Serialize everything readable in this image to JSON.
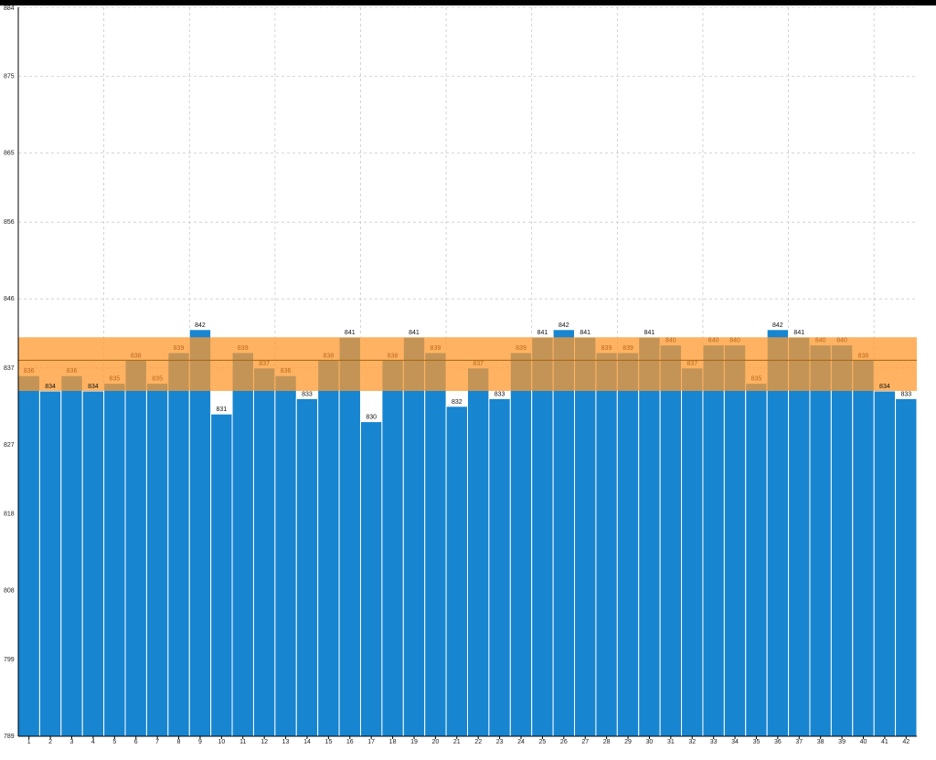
{
  "chart_data": {
    "type": "bar",
    "categories": [
      "1",
      "2",
      "3",
      "4",
      "5",
      "6",
      "7",
      "8",
      "9",
      "10",
      "11",
      "12",
      "13",
      "14",
      "15",
      "16",
      "17",
      "18",
      "19",
      "20",
      "21",
      "22",
      "23",
      "24",
      "25",
      "26",
      "27",
      "28",
      "29",
      "30",
      "31",
      "32",
      "33",
      "34",
      "35",
      "36",
      "37",
      "38",
      "39",
      "40",
      "41",
      "42"
    ],
    "values": [
      836,
      834,
      836,
      834,
      835,
      838,
      835,
      839,
      842,
      831,
      839,
      837,
      836,
      833,
      838,
      841,
      830,
      838,
      841,
      839,
      832,
      837,
      833,
      839,
      841,
      842,
      841,
      839,
      839,
      841,
      840,
      837,
      840,
      840,
      835,
      842,
      841,
      840,
      840,
      838,
      834,
      833
    ],
    "ylim": [
      789,
      884
    ],
    "yticks": [
      "789",
      "799",
      "808",
      "818",
      "827",
      "837",
      "846",
      "856",
      "865",
      "875",
      "884"
    ],
    "band": {
      "low": 834,
      "high": 841,
      "mean": 838
    },
    "title": "",
    "xlabel": "",
    "ylabel": "",
    "grid": true,
    "colors": {
      "bar": "#1785d0",
      "bar_stroke": "#ffffff",
      "band_fill": "#ff9a2e",
      "band_line": "#a66410",
      "label_inside": "#b8661a",
      "label_outside": "#111111",
      "axis": "#000000",
      "grid": "#c9c9c9"
    }
  }
}
